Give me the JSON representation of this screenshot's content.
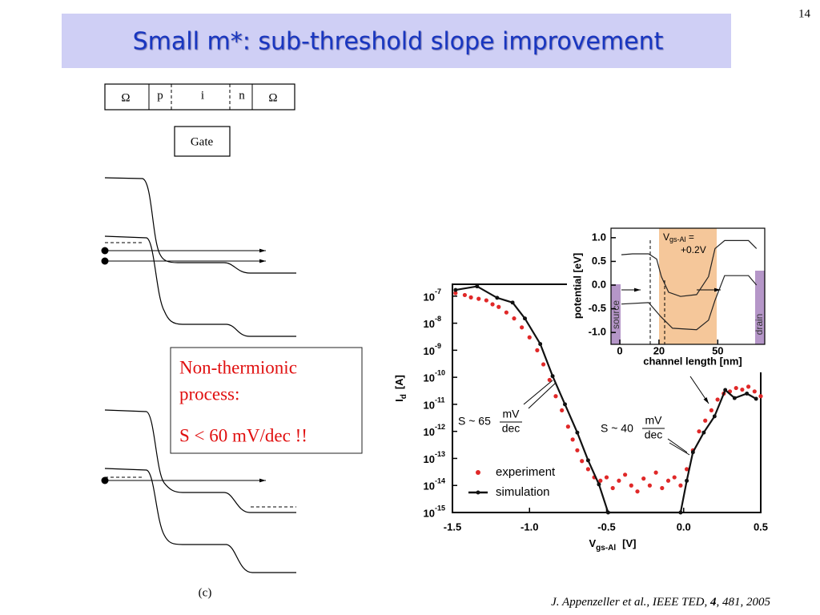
{
  "page_number": "14",
  "title": "Small m*: sub-threshold slope improvement",
  "device": {
    "regions": [
      "Ω",
      "p",
      "i",
      "n",
      "Ω"
    ],
    "gate": "Gate"
  },
  "callout": {
    "lines": [
      "Non-thermionic",
      "process:"
    ],
    "condition": "S < 60 mV/dec !!"
  },
  "figure_label": "(c)",
  "citation": [
    "J. Appenzeller et al., IEEE TED, ",
    "4",
    ", 481, 2005"
  ],
  "chart_data": [
    {
      "type": "line",
      "log_scale": "y",
      "xlabel": [
        "V",
        "gs-Al",
        "[V]"
      ],
      "ylabel": [
        "I",
        "d",
        "[A]"
      ],
      "xlim": [
        -1.5,
        0.5
      ],
      "ylim": [
        1e-15,
        2.75e-07
      ],
      "xticks": [
        -1.5,
        {
          "value": -1,
          "label": "-1.0"
        },
        -0.5,
        {
          "value": 0,
          "label": "0.0"
        },
        0.5
      ],
      "yticks": [
        {
          "value": 1e-07,
          "label": "10",
          "sup": "-7"
        },
        {
          "value": 1e-08,
          "label": "10",
          "sup": "-8"
        },
        {
          "value": 1e-09,
          "label": "10",
          "sup": "-9"
        },
        {
          "value": 1e-10,
          "label": "10",
          "sup": "-10"
        },
        {
          "value": 1e-11,
          "label": "10",
          "sup": "-11"
        },
        {
          "value": 1e-12,
          "label": "10",
          "sup": "-12"
        },
        {
          "value": 1e-13,
          "label": "10",
          "sup": "-13"
        },
        {
          "value": 1e-14,
          "label": "10",
          "sup": "-14"
        },
        {
          "value": 1e-15,
          "label": "10",
          "sup": "-15"
        }
      ],
      "annotations": [
        {
          "text": "S ~ 65",
          "num": "mV",
          "den": "dec"
        },
        {
          "text": "S ~ 40",
          "num": "mV",
          "den": "dec"
        }
      ],
      "series": [
        {
          "name": "experiment",
          "color": "#e02828",
          "style": "markers",
          "x": [
            -1.48,
            -1.42,
            -1.38,
            -1.33,
            -1.28,
            -1.24,
            -1.2,
            -1.15,
            -1.1,
            -1.05,
            -1.0,
            -0.95,
            -0.91,
            -0.87,
            -0.83,
            -0.79,
            -0.75,
            -0.72,
            -0.69,
            -0.66,
            -0.62,
            -0.58,
            -0.54,
            -0.5,
            -0.46,
            -0.42,
            -0.38,
            -0.34,
            -0.3,
            -0.26,
            -0.22,
            -0.18,
            -0.14,
            -0.1,
            -0.06,
            -0.02,
            0.02,
            0.06,
            0.1,
            0.14,
            0.18,
            0.22,
            0.26,
            0.3,
            0.34,
            0.38,
            0.42,
            0.46,
            0.5
          ],
          "values": [
            1.3e-07,
            1.1e-07,
            9e-08,
            8e-08,
            7e-08,
            5e-08,
            4e-08,
            2.5e-08,
            1.5e-08,
            7e-09,
            3e-09,
            1e-09,
            3e-10,
            8e-11,
            2e-11,
            6e-12,
            1.5e-12,
            5e-13,
            2e-13,
            8e-14,
            4e-14,
            2e-14,
            1.5e-14,
            2e-14,
            8e-15,
            1.5e-14,
            2.5e-14,
            1e-14,
            6e-15,
            1.8e-14,
            1e-14,
            3e-14,
            8e-15,
            1.5e-14,
            2e-14,
            1e-14,
            4e-14,
            2e-13,
            1e-12,
            2.5e-12,
            6e-12,
            1.5e-11,
            2.5e-11,
            3e-11,
            4e-11,
            3.5e-11,
            4.5e-11,
            3e-11,
            2e-11
          ]
        },
        {
          "name": "simulation",
          "color": "#111111",
          "style": "line",
          "x": [
            -1.48,
            -1.34,
            -1.21,
            -1.11,
            -1.03,
            -0.93,
            -0.85,
            -0.77,
            -0.69,
            -0.62,
            -0.55,
            -0.49,
            -0.02,
            0.02,
            0.06,
            0.13,
            0.2,
            0.27,
            0.33,
            0.41,
            0.47
          ],
          "values": [
            1.7e-07,
            2.3e-07,
            8.7e-08,
            5.8e-08,
            1.5e-08,
            1.7e-09,
            1.1e-10,
            1e-11,
            9e-13,
            8.5e-14,
            1.1e-14,
            1e-15,
            1e-15,
            1.5e-14,
            1.7e-13,
            9e-13,
            3.6e-12,
            3.4e-11,
            1.7e-11,
            2.5e-11,
            1.6e-11
          ]
        }
      ]
    },
    {
      "type": "line",
      "xlabel": "channel length  [nm]",
      "ylabel": "potential  [eV]",
      "annotation": [
        "V",
        "gs-Al",
        " =",
        "+0.2V"
      ],
      "regions": [
        "source",
        "drain"
      ],
      "xlim": [
        -4.5,
        74
      ],
      "ylim": [
        -1.25,
        1.2
      ],
      "xticks": [
        0,
        20,
        50
      ],
      "yticks": [
        {
          "value": 1,
          "label": "1.0"
        },
        0.5,
        {
          "value": 0,
          "label": "0.0"
        },
        -0.5,
        {
          "value": -1,
          "label": "-1.0"
        }
      ],
      "series": [
        {
          "color": "#222222",
          "style": "line",
          "x": [
            0.8,
            6.5,
            14.7,
            18.8,
            21.2,
            24.9,
            31,
            39.2,
            45.3,
            48.6,
            53.5,
            65.7,
            69.8
          ],
          "values": [
            0.64,
            0.66,
            0.66,
            0.55,
            0.18,
            -0.15,
            -0.24,
            -0.2,
            0.18,
            0.77,
            0.94,
            0.94,
            0.77
          ]
        },
        {
          "color": "#222222",
          "style": "line",
          "x": [
            0.8,
            14.7,
            20.8,
            26.9,
            39.2,
            45.3,
            48.6,
            53.5,
            65.7,
            69.8
          ],
          "values": [
            -0.4,
            -0.37,
            -0.66,
            -0.91,
            -0.94,
            -0.74,
            -0.32,
            0.2,
            0.2,
            0
          ]
        }
      ]
    }
  ]
}
